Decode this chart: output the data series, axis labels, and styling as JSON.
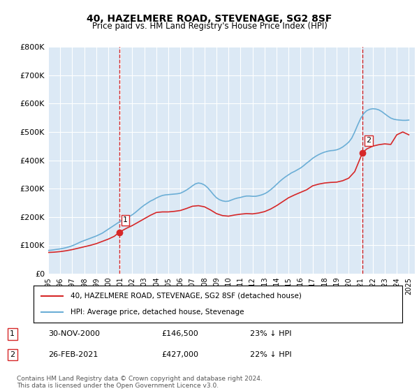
{
  "title": "40, HAZELMERE ROAD, STEVENAGE, SG2 8SF",
  "subtitle": "Price paid vs. HM Land Registry's House Price Index (HPI)",
  "ylabel": "",
  "background_color": "#ffffff",
  "plot_bg_color": "#dce9f5",
  "grid_color": "#ffffff",
  "ylim": [
    0,
    800000
  ],
  "yticks": [
    0,
    100000,
    200000,
    300000,
    400000,
    500000,
    600000,
    700000,
    800000
  ],
  "ytick_labels": [
    "£0",
    "£100K",
    "£200K",
    "£300K",
    "£400K",
    "£500K",
    "£600K",
    "£700K",
    "£800K"
  ],
  "xlim_start": 1995.0,
  "xlim_end": 2025.5,
  "xticks": [
    1995,
    1996,
    1997,
    1998,
    1999,
    2000,
    2001,
    2002,
    2003,
    2004,
    2005,
    2006,
    2007,
    2008,
    2009,
    2010,
    2011,
    2012,
    2013,
    2014,
    2015,
    2016,
    2017,
    2018,
    2019,
    2020,
    2021,
    2022,
    2023,
    2024,
    2025
  ],
  "hpi_color": "#6baed6",
  "sale_color": "#d62728",
  "marker1_x": 2000.92,
  "marker1_y": 146500,
  "marker1_label": "1",
  "marker2_x": 2021.15,
  "marker2_y": 427000,
  "marker2_label": "2",
  "vline1_x": 2000.92,
  "vline2_x": 2021.15,
  "vline_color": "#d62728",
  "legend_line1": "40, HAZELMERE ROAD, STEVENAGE, SG2 8SF (detached house)",
  "legend_line2": "HPI: Average price, detached house, Stevenage",
  "table_row1": [
    "1",
    "30-NOV-2000",
    "£146,500",
    "23% ↓ HPI"
  ],
  "table_row2": [
    "2",
    "26-FEB-2021",
    "£427,000",
    "22% ↓ HPI"
  ],
  "footnote": "Contains HM Land Registry data © Crown copyright and database right 2024.\nThis data is licensed under the Open Government Licence v3.0.",
  "hpi_x": [
    1995.0,
    1995.25,
    1995.5,
    1995.75,
    1996.0,
    1996.25,
    1996.5,
    1996.75,
    1997.0,
    1997.25,
    1997.5,
    1997.75,
    1998.0,
    1998.25,
    1998.5,
    1998.75,
    1999.0,
    1999.25,
    1999.5,
    1999.75,
    2000.0,
    2000.25,
    2000.5,
    2000.75,
    2001.0,
    2001.25,
    2001.5,
    2001.75,
    2002.0,
    2002.25,
    2002.5,
    2002.75,
    2003.0,
    2003.25,
    2003.5,
    2003.75,
    2004.0,
    2004.25,
    2004.5,
    2004.75,
    2005.0,
    2005.25,
    2005.5,
    2005.75,
    2006.0,
    2006.25,
    2006.5,
    2006.75,
    2007.0,
    2007.25,
    2007.5,
    2007.75,
    2008.0,
    2008.25,
    2008.5,
    2008.75,
    2009.0,
    2009.25,
    2009.5,
    2009.75,
    2010.0,
    2010.25,
    2010.5,
    2010.75,
    2011.0,
    2011.25,
    2011.5,
    2011.75,
    2012.0,
    2012.25,
    2012.5,
    2012.75,
    2013.0,
    2013.25,
    2013.5,
    2013.75,
    2014.0,
    2014.25,
    2014.5,
    2014.75,
    2015.0,
    2015.25,
    2015.5,
    2015.75,
    2016.0,
    2016.25,
    2016.5,
    2016.75,
    2017.0,
    2017.25,
    2017.5,
    2017.75,
    2018.0,
    2018.25,
    2018.5,
    2018.75,
    2019.0,
    2019.25,
    2019.5,
    2019.75,
    2020.0,
    2020.25,
    2020.5,
    2020.75,
    2021.0,
    2021.25,
    2021.5,
    2021.75,
    2022.0,
    2022.25,
    2022.5,
    2022.75,
    2023.0,
    2023.25,
    2023.5,
    2023.75,
    2024.0,
    2024.25,
    2024.5,
    2024.75,
    2025.0
  ],
  "hpi_y": [
    82000,
    83000,
    84500,
    86000,
    87500,
    89500,
    92000,
    95000,
    98500,
    103000,
    108000,
    113000,
    117000,
    121000,
    125000,
    129000,
    133000,
    138000,
    143000,
    150000,
    157000,
    164000,
    171000,
    178000,
    185000,
    191000,
    197000,
    202000,
    208000,
    216000,
    225000,
    234000,
    242000,
    249000,
    256000,
    261000,
    267000,
    272000,
    276000,
    278000,
    279000,
    280000,
    281000,
    282000,
    284000,
    289000,
    295000,
    302000,
    310000,
    317000,
    320000,
    318000,
    313000,
    304000,
    292000,
    279000,
    268000,
    261000,
    257000,
    255000,
    256000,
    260000,
    264000,
    267000,
    269000,
    272000,
    274000,
    274000,
    273000,
    273000,
    275000,
    278000,
    282000,
    288000,
    296000,
    305000,
    315000,
    325000,
    334000,
    342000,
    349000,
    356000,
    361000,
    367000,
    373000,
    381000,
    390000,
    398000,
    407000,
    414000,
    420000,
    425000,
    429000,
    432000,
    434000,
    435000,
    437000,
    441000,
    447000,
    455000,
    464000,
    478000,
    500000,
    525000,
    548000,
    565000,
    575000,
    580000,
    582000,
    581000,
    578000,
    572000,
    564000,
    556000,
    549000,
    545000,
    543000,
    542000,
    541000,
    541000,
    542000
  ],
  "sale_x": [
    1995.0,
    1995.5,
    1996.0,
    1996.5,
    1997.0,
    1997.5,
    1998.0,
    1998.5,
    1999.0,
    1999.5,
    2000.0,
    2000.5,
    2000.92,
    2001.5,
    2002.0,
    2002.5,
    2003.0,
    2003.5,
    2004.0,
    2004.5,
    2005.0,
    2005.5,
    2006.0,
    2006.5,
    2007.0,
    2007.5,
    2008.0,
    2008.5,
    2009.0,
    2009.5,
    2010.0,
    2010.5,
    2011.0,
    2011.5,
    2012.0,
    2012.5,
    2013.0,
    2013.5,
    2014.0,
    2014.5,
    2015.0,
    2015.5,
    2016.0,
    2016.5,
    2017.0,
    2017.5,
    2018.0,
    2018.5,
    2019.0,
    2019.5,
    2020.0,
    2020.5,
    2021.15,
    2021.5,
    2022.0,
    2022.5,
    2023.0,
    2023.5,
    2024.0,
    2024.5,
    2025.0
  ],
  "sale_y": [
    75000,
    76000,
    78000,
    81000,
    85000,
    90000,
    95000,
    100000,
    106000,
    114000,
    122000,
    132000,
    146500,
    160000,
    170000,
    182000,
    194000,
    206000,
    216000,
    218000,
    218000,
    220000,
    223000,
    230000,
    238000,
    240000,
    236000,
    225000,
    212000,
    205000,
    203000,
    207000,
    210000,
    212000,
    211000,
    214000,
    219000,
    228000,
    240000,
    254000,
    268000,
    278000,
    287000,
    296000,
    310000,
    316000,
    320000,
    322000,
    323000,
    328000,
    337000,
    360000,
    427000,
    440000,
    450000,
    455000,
    458000,
    456000,
    490000,
    500000,
    490000
  ]
}
